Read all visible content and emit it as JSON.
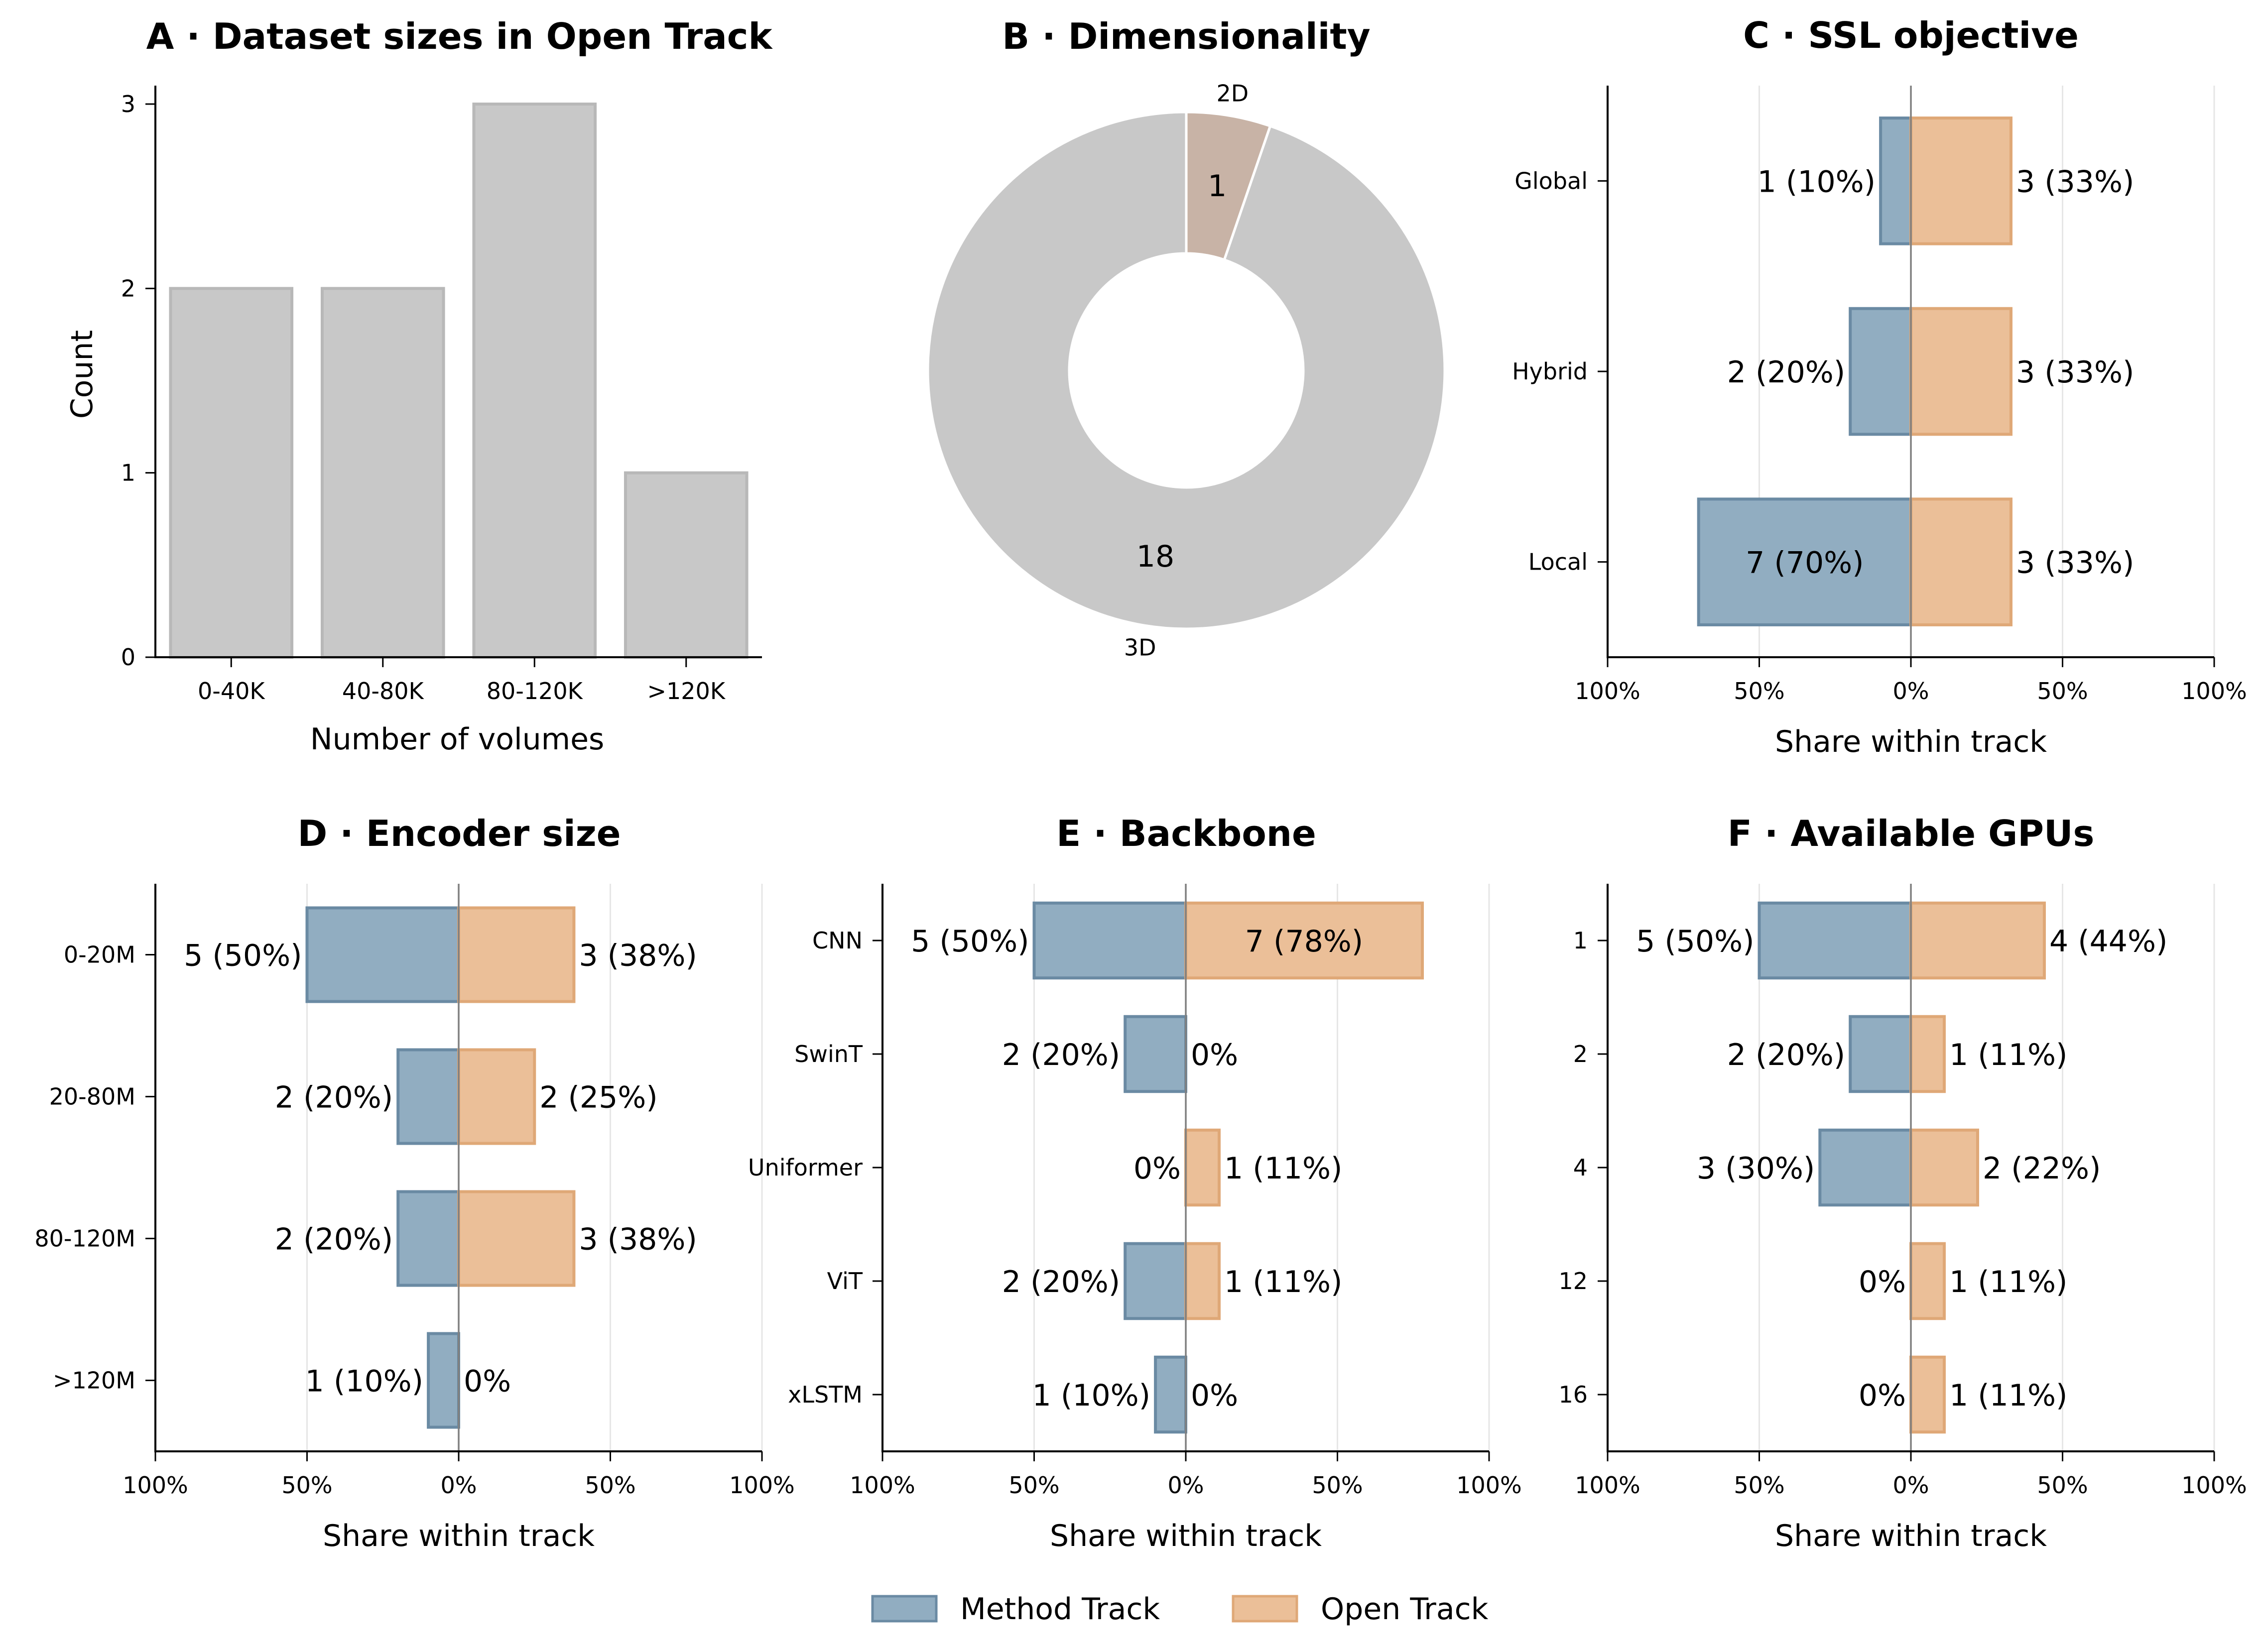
{
  "colors": {
    "method": "#91adc1",
    "method_edge": "#6a8aa3",
    "open": "#ebbf98",
    "open_edge": "#dfa877",
    "neutral": "#c8c8c8",
    "neutral_edge": "#b8b8b8",
    "accent_2d": "#c8b3a6"
  },
  "legend": {
    "method": "Method Track",
    "open": "Open Track"
  },
  "chart_data": [
    {
      "id": "A",
      "type": "bar",
      "title": "A · Dataset sizes in Open Track",
      "xlabel": "Number of volumes",
      "ylabel": "Count",
      "categories": [
        "0-40K",
        "40-80K",
        "80-120K",
        ">120K"
      ],
      "values": [
        2,
        2,
        3,
        1
      ],
      "ylim": [
        0,
        3.1
      ],
      "yticks": [
        "0",
        "1",
        "2",
        "3"
      ]
    },
    {
      "id": "B",
      "type": "pie",
      "title": "B · Dimensionality",
      "labels": [
        "3D",
        "2D"
      ],
      "values": [
        18,
        1
      ],
      "value_labels": [
        "18",
        "1"
      ]
    },
    {
      "id": "C",
      "type": "bar",
      "title": "C · SSL objective",
      "xlabel": "Share within track",
      "xticks": [
        "100%",
        "50%",
        "0%",
        "50%",
        "100%"
      ],
      "categories": [
        "Global",
        "Hybrid",
        "Local"
      ],
      "series": [
        {
          "name": "Method Track",
          "values": [
            10,
            20,
            70
          ],
          "labels": [
            "1 (10%)",
            "2 (20%)",
            "7 (70%)"
          ]
        },
        {
          "name": "Open Track",
          "values": [
            33,
            33,
            33
          ],
          "labels": [
            "3 (33%)",
            "3 (33%)",
            "3 (33%)"
          ]
        }
      ]
    },
    {
      "id": "D",
      "type": "bar",
      "title": "D · Encoder size",
      "xlabel": "Share within track",
      "xticks": [
        "100%",
        "50%",
        "0%",
        "50%",
        "100%"
      ],
      "categories": [
        "0-20M",
        "20-80M",
        "80-120M",
        ">120M"
      ],
      "series": [
        {
          "name": "Method Track",
          "values": [
            50,
            20,
            20,
            10
          ],
          "labels": [
            "5 (50%)",
            "2 (20%)",
            "2 (20%)",
            "1 (10%)"
          ]
        },
        {
          "name": "Open Track",
          "values": [
            38,
            25,
            38,
            0
          ],
          "labels": [
            "3 (38%)",
            "2 (25%)",
            "3 (38%)",
            "0%"
          ]
        }
      ]
    },
    {
      "id": "E",
      "type": "bar",
      "title": "E · Backbone",
      "xlabel": "Share within track",
      "xticks": [
        "100%",
        "50%",
        "0%",
        "50%",
        "100%"
      ],
      "categories": [
        "CNN",
        "SwinT",
        "Uniformer",
        "ViT",
        "xLSTM"
      ],
      "series": [
        {
          "name": "Method Track",
          "values": [
            50,
            20,
            0,
            20,
            10
          ],
          "labels": [
            "5 (50%)",
            "2 (20%)",
            "0%",
            "2 (20%)",
            "1 (10%)"
          ]
        },
        {
          "name": "Open Track",
          "values": [
            78,
            0,
            11,
            11,
            0
          ],
          "labels": [
            "7 (78%)",
            "0%",
            "1 (11%)",
            "1 (11%)",
            "0%"
          ]
        }
      ]
    },
    {
      "id": "F",
      "type": "bar",
      "title": "F · Available GPUs",
      "xlabel": "Share within track",
      "xticks": [
        "100%",
        "50%",
        "0%",
        "50%",
        "100%"
      ],
      "categories": [
        "1",
        "2",
        "4",
        "12",
        "16"
      ],
      "series": [
        {
          "name": "Method Track",
          "values": [
            50,
            20,
            30,
            0,
            0
          ],
          "labels": [
            "5 (50%)",
            "2 (20%)",
            "3 (30%)",
            "0%",
            "0%"
          ]
        },
        {
          "name": "Open Track",
          "values": [
            44,
            11,
            22,
            11,
            11
          ],
          "labels": [
            "4 (44%)",
            "1 (11%)",
            "2 (22%)",
            "1 (11%)",
            "1 (11%)"
          ]
        }
      ]
    }
  ]
}
